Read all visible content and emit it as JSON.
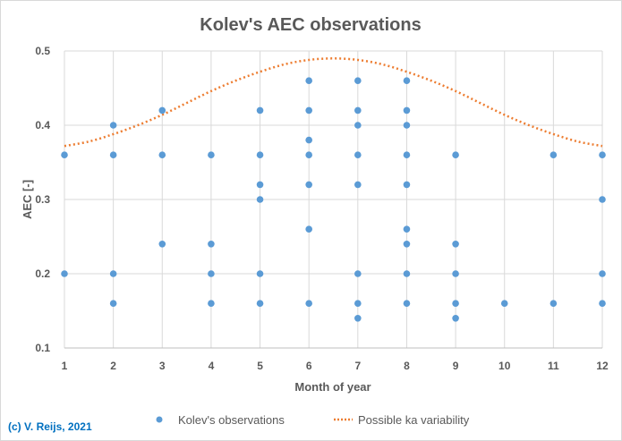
{
  "chart_data": {
    "type": "scatter",
    "title": "Kolev's AEC observations",
    "xlabel": "Month of year",
    "ylabel": "AEC [-]",
    "xlim": [
      1,
      12
    ],
    "ylim": [
      0.1,
      0.5
    ],
    "x_ticks": [
      "1",
      "2",
      "3",
      "4",
      "5",
      "6",
      "7",
      "8",
      "9",
      "10",
      "11",
      "12"
    ],
    "y_ticks": [
      "0.1",
      "0.2",
      "0.3",
      "0.4",
      "0.5"
    ],
    "grid": true,
    "legend_placement": "bottom",
    "series": [
      {
        "name": "Kolev's observations",
        "kind": "scatter",
        "color": "#5b9bd5",
        "points": [
          [
            1,
            0.36
          ],
          [
            1,
            0.2
          ],
          [
            2,
            0.4
          ],
          [
            2,
            0.36
          ],
          [
            2,
            0.2
          ],
          [
            2,
            0.16
          ],
          [
            3,
            0.42
          ],
          [
            3,
            0.36
          ],
          [
            3,
            0.24
          ],
          [
            4,
            0.36
          ],
          [
            4,
            0.24
          ],
          [
            4,
            0.2
          ],
          [
            4,
            0.16
          ],
          [
            5,
            0.42
          ],
          [
            5,
            0.36
          ],
          [
            5,
            0.32
          ],
          [
            5,
            0.3
          ],
          [
            5,
            0.2
          ],
          [
            5,
            0.16
          ],
          [
            6,
            0.46
          ],
          [
            6,
            0.42
          ],
          [
            6,
            0.38
          ],
          [
            6,
            0.36
          ],
          [
            6,
            0.32
          ],
          [
            6,
            0.26
          ],
          [
            6,
            0.16
          ],
          [
            7,
            0.46
          ],
          [
            7,
            0.42
          ],
          [
            7,
            0.4
          ],
          [
            7,
            0.36
          ],
          [
            7,
            0.32
          ],
          [
            7,
            0.2
          ],
          [
            7,
            0.16
          ],
          [
            7,
            0.14
          ],
          [
            8,
            0.46
          ],
          [
            8,
            0.42
          ],
          [
            8,
            0.4
          ],
          [
            8,
            0.36
          ],
          [
            8,
            0.32
          ],
          [
            8,
            0.26
          ],
          [
            8,
            0.24
          ],
          [
            8,
            0.2
          ],
          [
            8,
            0.16
          ],
          [
            9,
            0.36
          ],
          [
            9,
            0.24
          ],
          [
            9,
            0.2
          ],
          [
            9,
            0.16
          ],
          [
            9,
            0.14
          ],
          [
            10,
            0.16
          ],
          [
            11,
            0.36
          ],
          [
            11,
            0.16
          ],
          [
            12,
            0.36
          ],
          [
            12,
            0.3
          ],
          [
            12,
            0.2
          ],
          [
            12,
            0.16
          ]
        ]
      },
      {
        "name": "Possible ka variability",
        "kind": "line",
        "style": "dotted",
        "color": "#ed7d31",
        "x": [
          1,
          1.5,
          2,
          2.5,
          3,
          3.5,
          4,
          4.5,
          5,
          5.5,
          6,
          6.5,
          7,
          7.5,
          8,
          8.5,
          9,
          9.5,
          10,
          10.5,
          11,
          11.5,
          12
        ],
        "y": [
          0.372,
          0.378,
          0.388,
          0.4,
          0.414,
          0.43,
          0.446,
          0.46,
          0.472,
          0.482,
          0.488,
          0.49,
          0.488,
          0.482,
          0.472,
          0.46,
          0.446,
          0.43,
          0.414,
          0.4,
          0.388,
          0.378,
          0.372
        ]
      }
    ]
  },
  "copyright": "(c) V. Reijs, 2021"
}
